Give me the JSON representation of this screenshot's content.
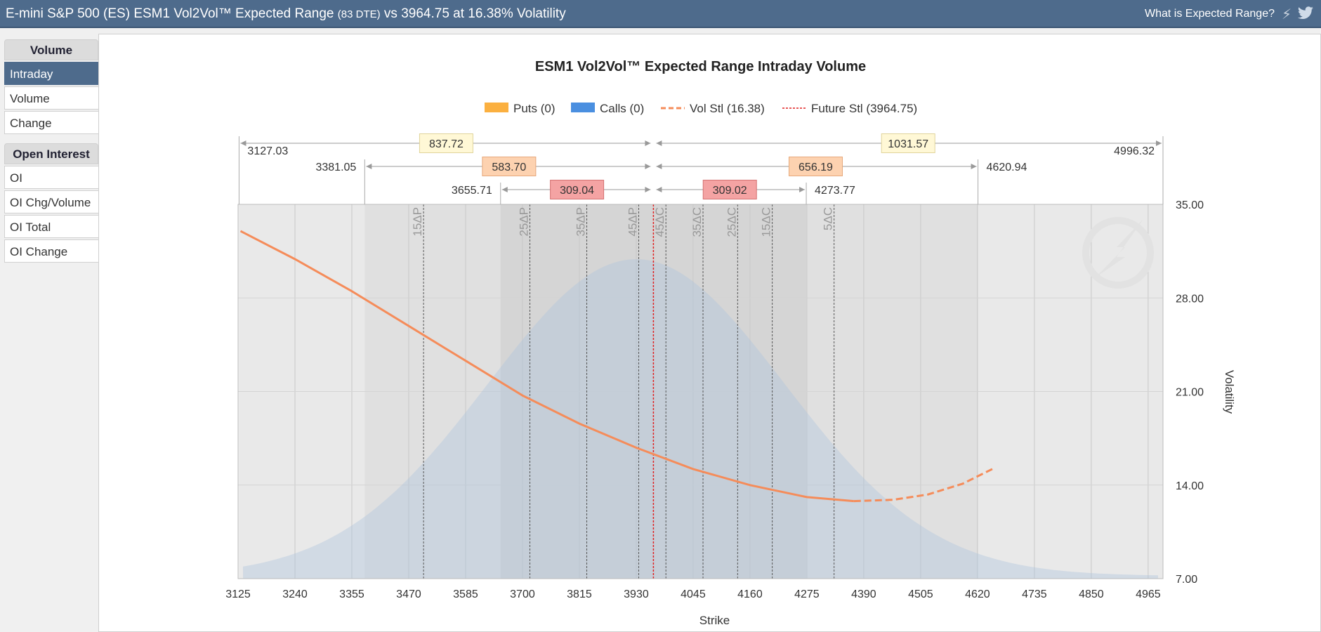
{
  "header": {
    "title_main": "E-mini S&P 500 (ES) ESM1 Vol2Vol™ Expected Range",
    "title_dte": "(83 DTE)",
    "title_tail": "vs 3964.75 at 16.38% Volatility",
    "help_link": "What is Expected Range?",
    "icons": [
      "bolt-icon",
      "twitter-bird-icon"
    ]
  },
  "sidebar": {
    "volume_heading": "Volume",
    "volume_items": [
      "Intraday",
      "Volume",
      "Change"
    ],
    "active_item": "Intraday",
    "oi_heading": "Open Interest",
    "oi_items": [
      "OI",
      "OI Chg/Volume",
      "OI Total",
      "OI Change"
    ]
  },
  "chart_data": {
    "type": "area",
    "title": "ESM1 Vol2Vol™ Expected Range Intraday Volume",
    "xlabel": "Strike",
    "ylabel": "Volatility",
    "xlim": [
      3125,
      4995
    ],
    "ylim": [
      7,
      35
    ],
    "x_ticks": [
      3125,
      3240,
      3355,
      3470,
      3585,
      3700,
      3815,
      3930,
      4045,
      4160,
      4275,
      4390,
      4505,
      4620,
      4735,
      4850,
      4965
    ],
    "y_ticks": [
      "7.00",
      "14.00",
      "21.00",
      "28.00",
      "35.00"
    ],
    "grid": true,
    "legend": [
      {
        "label": "Puts (0)",
        "color": "#fbb040",
        "kind": "box"
      },
      {
        "label": "Calls (0)",
        "color": "#4a8fe0",
        "kind": "box"
      },
      {
        "label": "Vol Stl (16.38)",
        "color": "#f58c5a",
        "kind": "dash"
      },
      {
        "label": "Future Stl (3964.75)",
        "color": "#e02020",
        "kind": "dot"
      }
    ],
    "legend_position": "top-center",
    "future_settle": 3964.75,
    "vol_curve": [
      {
        "x": 3130,
        "y": 33.0
      },
      {
        "x": 3240,
        "y": 30.9
      },
      {
        "x": 3355,
        "y": 28.5
      },
      {
        "x": 3470,
        "y": 25.9
      },
      {
        "x": 3585,
        "y": 23.3
      },
      {
        "x": 3700,
        "y": 20.7
      },
      {
        "x": 3815,
        "y": 18.6
      },
      {
        "x": 3930,
        "y": 16.8
      },
      {
        "x": 4045,
        "y": 15.2
      },
      {
        "x": 4160,
        "y": 14.0
      },
      {
        "x": 4275,
        "y": 13.1
      },
      {
        "x": 4370,
        "y": 12.8
      }
    ],
    "vol_curve_extrapolated": [
      {
        "x": 4370,
        "y": 12.8
      },
      {
        "x": 4450,
        "y": 12.9
      },
      {
        "x": 4520,
        "y": 13.3
      },
      {
        "x": 4590,
        "y": 14.1
      },
      {
        "x": 4650,
        "y": 15.2
      }
    ],
    "distribution": {
      "mean": 3930,
      "sd": 300,
      "peak": 30.9,
      "base": 7.2
    },
    "delta_lines": [
      {
        "label": "15ΔP",
        "x": 3500
      },
      {
        "label": "25ΔP",
        "x": 3715
      },
      {
        "label": "35ΔP",
        "x": 3830
      },
      {
        "label": "45ΔP",
        "x": 3935
      },
      {
        "label": "45ΔC",
        "x": 3990
      },
      {
        "label": "35ΔC",
        "x": 4065
      },
      {
        "label": "25ΔC",
        "x": 4135
      },
      {
        "label": "15ΔC",
        "x": 4205
      },
      {
        "label": "5ΔC",
        "x": 4330
      }
    ],
    "ranges": [
      {
        "low": 3127.03,
        "high": 4996.32,
        "low_label": "3127.03",
        "high_label": "4996.32",
        "down": "837.72",
        "up": "1031.57",
        "box_color": "#fff8d6",
        "box_border": "#e0d49a"
      },
      {
        "low": 3381.05,
        "high": 4620.94,
        "low_label": "3381.05",
        "high_label": "4620.94",
        "down": "583.70",
        "up": "656.19",
        "box_color": "#fdd2b0",
        "box_border": "#e6a97c"
      },
      {
        "low": 3655.71,
        "high": 4273.77,
        "low_label": "3655.71",
        "high_label": "4273.77",
        "down": "309.04",
        "up": "309.02",
        "box_color": "#f4a3a3",
        "box_border": "#d47272"
      }
    ]
  }
}
